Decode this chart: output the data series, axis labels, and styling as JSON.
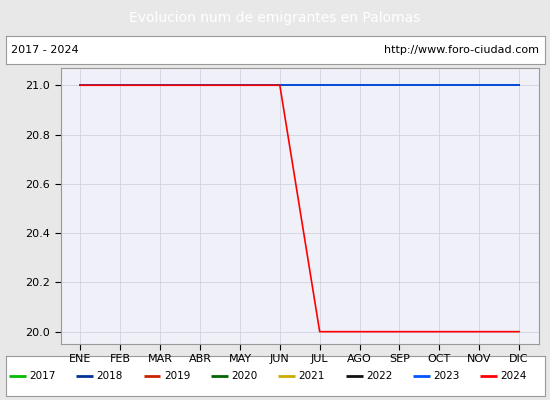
{
  "title": "Evolucion num de emigrantes en Palomas",
  "title_bg_color": "#4a86c8",
  "title_text_color": "#ffffff",
  "subtitle_left": "2017 - 2024",
  "subtitle_right": "http://www.foro-ciudad.com",
  "x_labels": [
    "ENE",
    "FEB",
    "MAR",
    "ABR",
    "MAY",
    "JUN",
    "JUL",
    "AGO",
    "SEP",
    "OCT",
    "NOV",
    "DIC"
  ],
  "ylim": [
    19.95,
    21.07
  ],
  "yticks": [
    20.0,
    20.2,
    20.4,
    20.6,
    20.8,
    21.0
  ],
  "bg_color": "#e8e8e8",
  "plot_bg_color": "#f0f0f8",
  "grid_color": "#ccccdd",
  "years": [
    2017,
    2018,
    2019,
    2020,
    2021,
    2022,
    2023,
    2024
  ],
  "year_colors": [
    "#00bb00",
    "#003399",
    "#cc2200",
    "#006600",
    "#ccaa00",
    "#111111",
    "#0055ff",
    "#ff0000"
  ],
  "series": {
    "2017": [
      21,
      21,
      21,
      21,
      21,
      21,
      21,
      21,
      21,
      21,
      21,
      21
    ],
    "2018": [
      21,
      21,
      21,
      21,
      21,
      21,
      21,
      21,
      21,
      21,
      21,
      21
    ],
    "2019": [
      21,
      21,
      21,
      21,
      21,
      21,
      21,
      21,
      21,
      21,
      21,
      21
    ],
    "2020": [
      21,
      21,
      21,
      21,
      21,
      21,
      21,
      21,
      21,
      21,
      21,
      21
    ],
    "2021": [
      21,
      21,
      21,
      21,
      21,
      21,
      21,
      21,
      21,
      21,
      21,
      21
    ],
    "2022": [
      21,
      21,
      21,
      21,
      21,
      21,
      21,
      21,
      21,
      21,
      21,
      21
    ],
    "2023": [
      21,
      21,
      21,
      21,
      21,
      21,
      21,
      21,
      21,
      21,
      21,
      21
    ],
    "2024": [
      21,
      21,
      21,
      21,
      21,
      21,
      20,
      20,
      20,
      20,
      20,
      20
    ]
  },
  "line_width": 1.2,
  "border_color": "#999999",
  "figwidth": 5.5,
  "figheight": 4.0,
  "dpi": 100
}
